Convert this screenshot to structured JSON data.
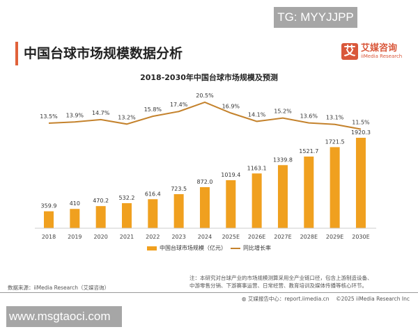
{
  "watermarks": {
    "top": "TG: MYYJJPP",
    "bottom": "www.msgtaoci.com"
  },
  "header": {
    "title": "中国台球市场规模数据分析",
    "logo_mark": "艾",
    "logo_cn": "艾媒咨询",
    "logo_en": "iiMedia Research"
  },
  "chart_data": {
    "type": "bar+line",
    "title": "2018-2030年中国台球市场规模及预测",
    "categories": [
      "2018",
      "2019",
      "2020",
      "2021",
      "2022",
      "2023",
      "2024",
      "2025E",
      "2026E",
      "2027E",
      "2028E",
      "2029E",
      "2030E"
    ],
    "series": [
      {
        "name": "中国台球市场规模（亿元）",
        "type": "bar",
        "color": "#f0a01f",
        "values": [
          359.9,
          410,
          470.2,
          532.2,
          616.4,
          723.5,
          872.0,
          1019.4,
          1163.1,
          1339.8,
          1521.7,
          1721.5,
          1920.3
        ],
        "labels": [
          "359.9",
          "410",
          "470.2",
          "532.2",
          "616.4",
          "723.5",
          "872.0",
          "1019.4",
          "1163.1",
          "1339.8",
          "1521.7",
          "1721.5",
          "1920.3"
        ]
      },
      {
        "name": "同比增长率",
        "type": "line",
        "color": "#c4822c",
        "values": [
          13.5,
          13.9,
          14.7,
          13.2,
          15.8,
          17.4,
          20.5,
          16.9,
          14.1,
          15.2,
          13.6,
          13.1,
          11.5
        ],
        "labels": [
          "13.5%",
          "13.9%",
          "14.7%",
          "13.2%",
          "15.8%",
          "17.4%",
          "20.5%",
          "16.9%",
          "14.1%",
          "15.2%",
          "13.6%",
          "13.1%",
          "11.5%"
        ]
      }
    ],
    "legend": "bottom",
    "grid": false
  },
  "footer": {
    "note_line1": "注：本研究对台球产业的市场规模测算采用全产业链口径，包含上游制造设备、",
    "note_line2": "中游零售分销、下游赛事运营、日常经营、教育培训及媒体传播等核心环节。",
    "source": "数据来源：iiMedia Research（艾媒咨询）",
    "report": "艾媒报告中心：report.iimedia.cn",
    "copyright": "©2025  iiMedia Research  Inc"
  }
}
